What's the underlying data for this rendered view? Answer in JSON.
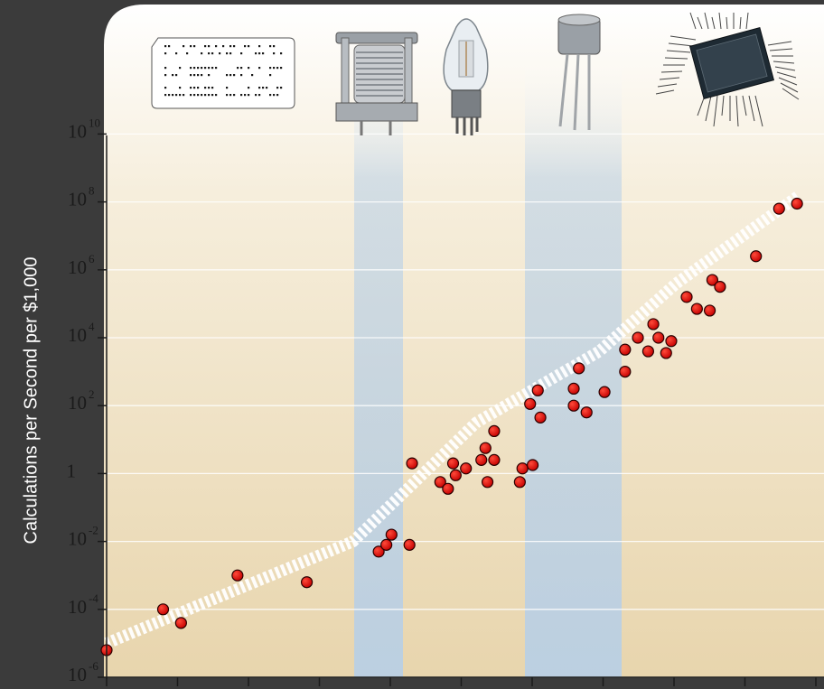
{
  "chart_data": {
    "type": "scatter",
    "title": "",
    "xlabel": "",
    "ylabel": "Calculations per Second per $1,000",
    "y_scale": "log10",
    "y_ticks": [
      {
        "base": "10",
        "exp": "-6"
      },
      {
        "base": "10",
        "exp": "-4"
      },
      {
        "base": "10",
        "exp": "-2"
      },
      {
        "base": "1",
        "exp": ""
      },
      {
        "base": "10",
        "exp": "2"
      },
      {
        "base": "10",
        "exp": "4"
      },
      {
        "base": "10",
        "exp": "6"
      },
      {
        "base": "10",
        "exp": "8"
      },
      {
        "base": "10",
        "exp": "10"
      }
    ],
    "ylim_exponent": [
      -6,
      10.5
    ],
    "grid": true,
    "eras": [
      {
        "name": "punch-card",
        "highlighted": false
      },
      {
        "name": "relay",
        "highlighted": true
      },
      {
        "name": "vacuum-tube",
        "highlighted": false
      },
      {
        "name": "transistor",
        "highlighted": true
      },
      {
        "name": "integrated-circuit",
        "highlighted": false
      }
    ],
    "trend_log10": [
      [
        0.0,
        -5.0
      ],
      [
        48.0,
        -2.0
      ],
      [
        72.0,
        1.5
      ],
      [
        96.0,
        3.6
      ],
      [
        111.0,
        5.6
      ],
      [
        135.0,
        8.2
      ]
    ],
    "points_log10": [
      [
        0.0,
        -5.2
      ],
      [
        11.0,
        -4.0
      ],
      [
        14.5,
        -4.4
      ],
      [
        25.5,
        -3.0
      ],
      [
        39.0,
        -3.2
      ],
      [
        53.0,
        -2.3
      ],
      [
        54.5,
        -2.1
      ],
      [
        55.5,
        -1.8
      ],
      [
        59.0,
        -2.1
      ],
      [
        59.5,
        0.3
      ],
      [
        65.0,
        -0.25
      ],
      [
        66.5,
        -0.45
      ],
      [
        67.5,
        0.3
      ],
      [
        68.0,
        -0.05
      ],
      [
        70.0,
        0.15
      ],
      [
        73.0,
        0.4
      ],
      [
        73.8,
        0.75
      ],
      [
        74.2,
        -0.25
      ],
      [
        75.5,
        1.25
      ],
      [
        75.5,
        0.4
      ],
      [
        80.5,
        -0.25
      ],
      [
        81.0,
        0.15
      ],
      [
        82.5,
        2.05
      ],
      [
        83.0,
        0.25
      ],
      [
        84.0,
        2.45
      ],
      [
        84.5,
        1.65
      ],
      [
        91.0,
        2.5
      ],
      [
        91.0,
        2.0
      ],
      [
        92.0,
        3.1
      ],
      [
        93.5,
        1.8
      ],
      [
        97.0,
        2.4
      ],
      [
        101.0,
        3.65
      ],
      [
        101.0,
        3.0
      ],
      [
        103.5,
        4.0
      ],
      [
        105.5,
        3.6
      ],
      [
        106.5,
        4.4
      ],
      [
        107.5,
        4.0
      ],
      [
        109.0,
        3.55
      ],
      [
        110.0,
        3.9
      ],
      [
        113.0,
        5.2
      ],
      [
        115.0,
        4.85
      ],
      [
        117.5,
        4.8
      ],
      [
        118.0,
        5.7
      ],
      [
        119.5,
        5.5
      ],
      [
        126.5,
        6.4
      ],
      [
        131.0,
        7.8
      ],
      [
        134.5,
        7.95
      ]
    ]
  },
  "colors": {
    "frame": "#3b3b3b",
    "plot_top": "#ffffff",
    "plot_bottom": "#e8d5ad",
    "band": "#bcd2e8",
    "point_fill": "#d90000",
    "point_stroke": "#2a0000",
    "trend": "#ffffff"
  },
  "icons": [
    "punch-card-icon",
    "relay-icon",
    "vacuum-tube-icon",
    "transistor-icon",
    "integrated-circuit-icon"
  ]
}
